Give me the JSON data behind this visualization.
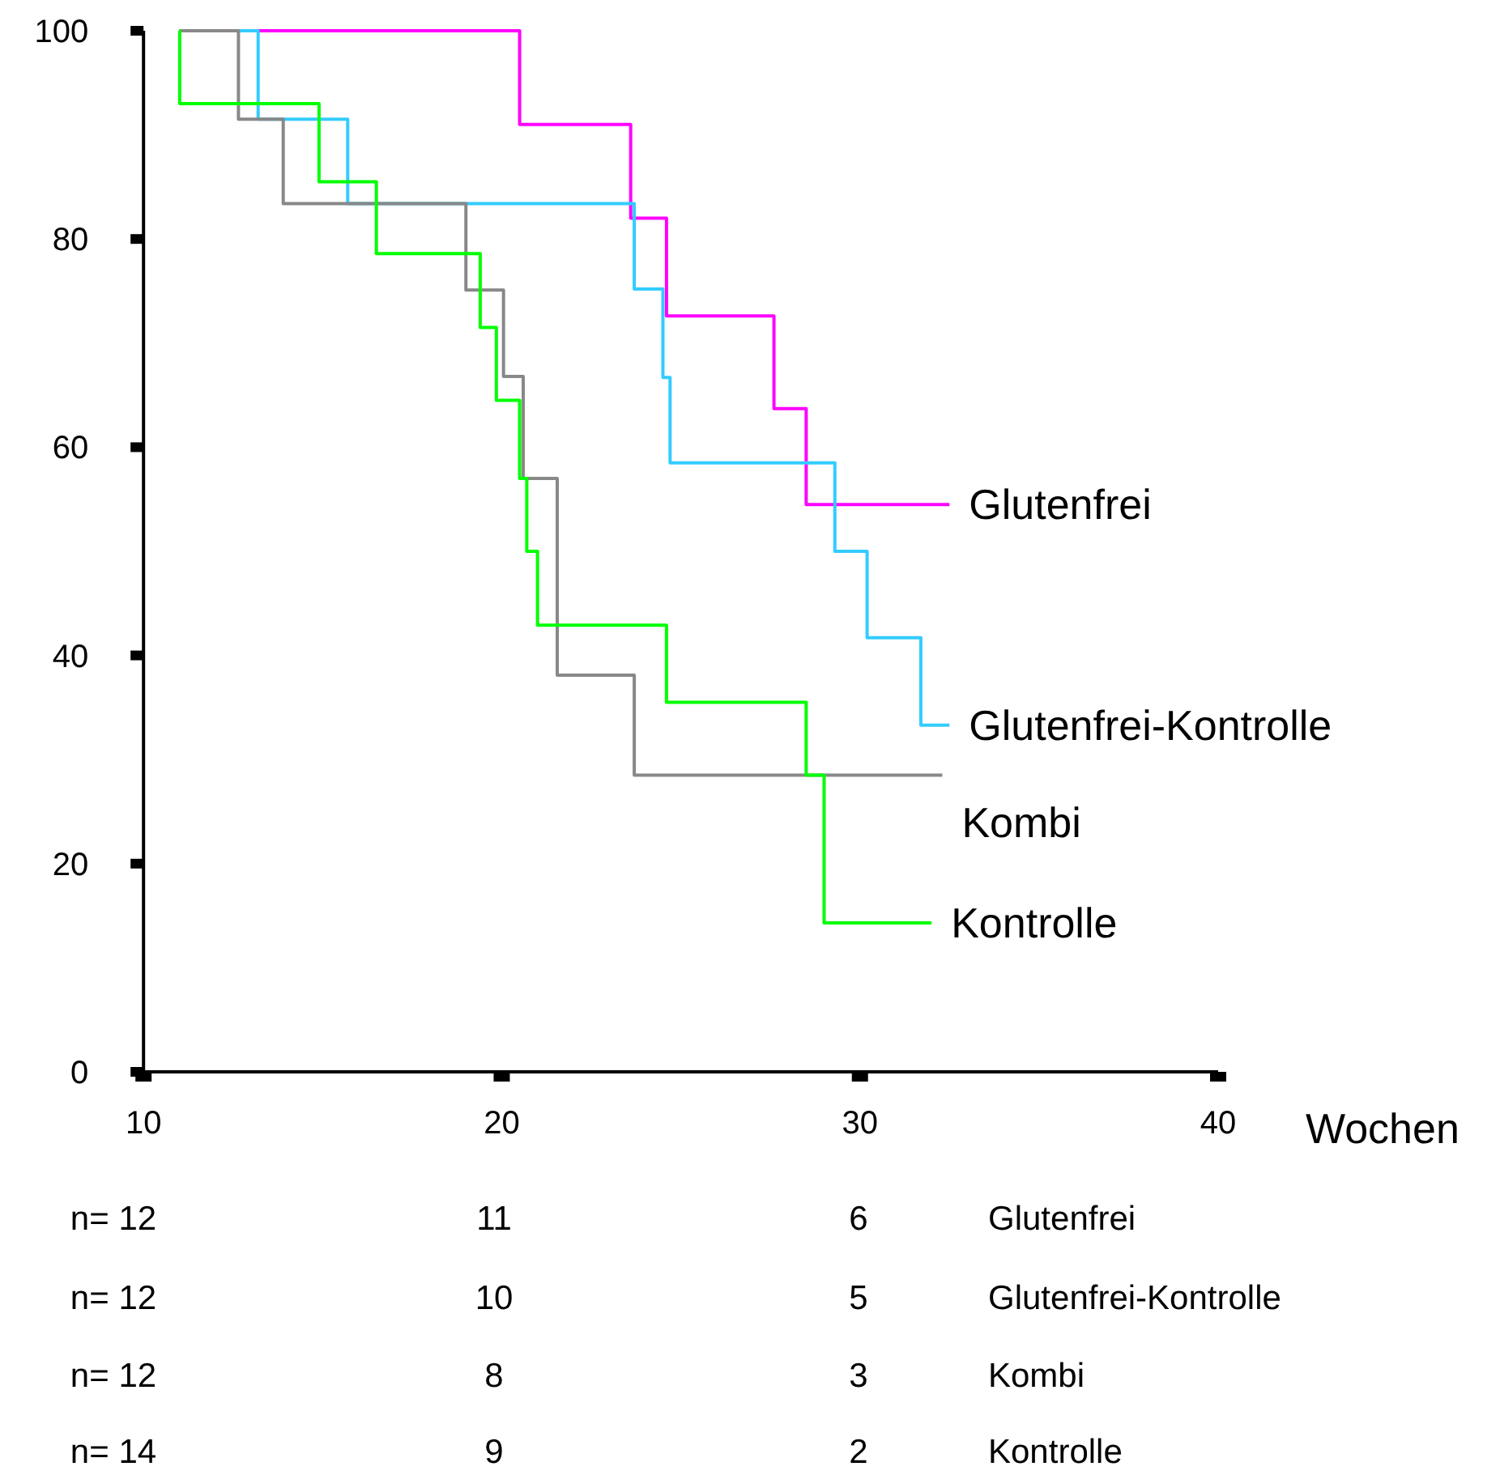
{
  "chart_data": {
    "type": "step",
    "xlabel": "Wochen",
    "xlim": [
      10,
      40
    ],
    "xticks": [
      10,
      20,
      30,
      40
    ],
    "ylim": [
      0,
      100
    ],
    "yticks": [
      0,
      20,
      40,
      60,
      80,
      100
    ],
    "grid": false,
    "legend": false,
    "marker": "none",
    "line_style": "solid",
    "series": [
      {
        "name": "Glutenfrei",
        "color": "#ff00ff",
        "x": [
          11,
          20.5,
          23.6,
          24.6,
          27.6,
          28.5,
          32.5
        ],
        "values": [
          100,
          91,
          82,
          72.6,
          63.7,
          54.5,
          54.5
        ]
      },
      {
        "name": "Glutenfrei-Kontrolle",
        "color": "#33ccff",
        "x": [
          11,
          13.2,
          15.7,
          23.7,
          24.5,
          24.7,
          29.3,
          30.2,
          31.7,
          32.5
        ],
        "values": [
          100,
          91.5,
          83.4,
          75.2,
          66.7,
          58.5,
          50,
          41.7,
          33.3,
          33.3
        ]
      },
      {
        "name": "Kombi",
        "color": "#888888",
        "x": [
          11,
          12.65,
          13.9,
          19,
          20.05,
          20.6,
          21.55,
          23.7,
          32.3
        ],
        "values": [
          100,
          91.5,
          83.4,
          75.1,
          66.8,
          57,
          38.1,
          28.5,
          28.5
        ]
      },
      {
        "name": "Kontrolle",
        "color": "#00ff00",
        "x": [
          11,
          11.01,
          14.9,
          16.5,
          19.4,
          19.85,
          20.5,
          20.7,
          21,
          24.6,
          28.5,
          29,
          32
        ],
        "values": [
          100,
          93,
          85.5,
          78.6,
          71.5,
          64.5,
          57,
          50,
          42.9,
          35.5,
          28.5,
          14.3,
          14.3
        ]
      }
    ],
    "annotations": [
      "n= 12",
      "11",
      "6",
      "n= 12",
      "10",
      "5",
      "n= 12",
      "8",
      "3",
      "n= 14",
      "9",
      "2"
    ]
  }
}
